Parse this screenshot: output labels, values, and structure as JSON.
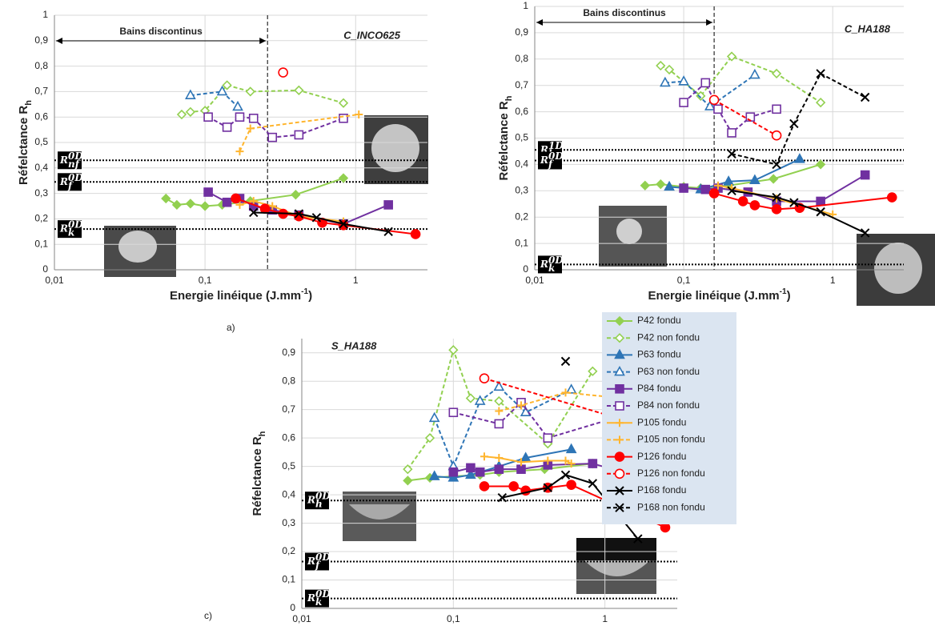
{
  "chart_data": [
    {
      "type": "line",
      "panel": "a)",
      "tag": "C_INCO625",
      "xscale": "log",
      "grid": true,
      "xlim": [
        0.01,
        3
      ],
      "xticks": [
        {
          "value": 0.01,
          "label": "0,01"
        },
        {
          "value": 0.1,
          "label": "0,1"
        },
        1
      ],
      "ylim": [
        0,
        1
      ],
      "yticks": [
        0,
        {
          "value": 0.1,
          "label": "0,1"
        },
        {
          "value": 0.2,
          "label": "0,2"
        },
        {
          "value": 0.3,
          "label": "0,3"
        },
        {
          "value": 0.4,
          "label": "0,4"
        },
        {
          "value": 0.5,
          "label": "0,5"
        },
        {
          "value": 0.6,
          "label": "0,6"
        },
        {
          "value": 0.7,
          "label": "0,7"
        },
        {
          "value": 0.8,
          "label": "0,8"
        },
        {
          "value": 0.9,
          "label": "0,9"
        },
        1
      ],
      "ylabel": "Réfelctance R",
      "ylabel_sub": "h",
      "xlabel": "Energie linéique (J.mm",
      "xlabel_sup": "-1",
      "xlabel_end": ")",
      "vline": {
        "value": 0.26,
        "label": "Bains discontinus"
      },
      "hlines": [
        {
          "value": 0.43,
          "symbol": "R",
          "sub": "nf",
          "sup": "0D"
        },
        {
          "value": 0.345,
          "symbol": "R",
          "sub": "f",
          "sup": "0D"
        },
        {
          "value": 0.16,
          "symbol": "R",
          "sub": "k",
          "sup": "0D"
        }
      ],
      "series": [
        {
          "color": "#92d050",
          "marker": "diamond",
          "filled": true,
          "dash": false,
          "x": [
            0.055,
            0.065,
            0.08,
            0.1,
            0.13,
            0.2,
            0.4,
            0.83
          ],
          "values": [
            0.28,
            0.255,
            0.26,
            0.25,
            0.255,
            0.27,
            0.295,
            0.36
          ]
        },
        {
          "color": "#92d050",
          "marker": "diamond",
          "filled": false,
          "dash": true,
          "x": [
            0.07,
            0.08,
            0.1,
            0.14,
            0.2,
            0.42,
            0.83
          ],
          "values": [
            0.61,
            0.62,
            0.625,
            0.725,
            0.7,
            0.705,
            0.655
          ]
        },
        {
          "color": "#2e75b6",
          "marker": "triangle",
          "filled": false,
          "dash": true,
          "x": [
            0.08,
            0.13,
            0.165
          ],
          "values": [
            0.685,
            0.7,
            0.64
          ]
        },
        {
          "color": "#7030a0",
          "marker": "square",
          "filled": true,
          "dash": false,
          "x": [
            0.105,
            0.14,
            0.17,
            0.21,
            0.28,
            0.42,
            0.83,
            1.65
          ],
          "values": [
            0.305,
            0.265,
            0.28,
            0.25,
            0.235,
            0.215,
            0.18,
            0.255
          ]
        },
        {
          "color": "#7030a0",
          "marker": "square",
          "filled": false,
          "dash": true,
          "x": [
            0.105,
            0.14,
            0.17,
            0.21,
            0.28,
            0.42,
            0.83
          ],
          "values": [
            0.6,
            0.56,
            0.6,
            0.595,
            0.52,
            0.53,
            0.595
          ]
        },
        {
          "color": "#ffb52e",
          "marker": "plus",
          "filled": true,
          "dash": false,
          "x": [
            0.17,
            0.21,
            0.28,
            0.42,
            0.83
          ],
          "values": [
            0.255,
            0.27,
            0.25,
            0.21,
            0.19
          ]
        },
        {
          "color": "#ffb52e",
          "marker": "plus",
          "filled": false,
          "dash": true,
          "x": [
            0.17,
            0.2,
            1.05
          ],
          "values": [
            0.465,
            0.555,
            0.61
          ]
        },
        {
          "color": "#ff0000",
          "marker": "circle",
          "filled": true,
          "dash": false,
          "x": [
            0.16,
            0.25,
            0.33,
            0.42,
            0.6,
            0.83,
            2.5
          ],
          "values": [
            0.28,
            0.24,
            0.22,
            0.21,
            0.185,
            0.175,
            0.14
          ]
        },
        {
          "color": "#ff0000",
          "marker": "circle",
          "filled": false,
          "dash": true,
          "x": [
            0.33
          ],
          "values": [
            0.775
          ]
        },
        {
          "color": "#000000",
          "marker": "x",
          "filled": true,
          "dash": false,
          "x": [
            0.21,
            0.42,
            0.55,
            0.83,
            1.65
          ],
          "values": [
            0.225,
            0.22,
            0.205,
            0.18,
            0.15
          ]
        }
      ]
    },
    {
      "type": "line",
      "panel": "b)",
      "tag": "C_HA188",
      "xscale": "log",
      "grid": true,
      "xlim": [
        0.01,
        3
      ],
      "xticks": [
        {
          "value": 0.01,
          "label": "0,01"
        },
        {
          "value": 0.1,
          "label": "0,1"
        },
        1
      ],
      "ylim": [
        0,
        1
      ],
      "yticks": [
        0,
        {
          "value": 0.1,
          "label": "0,1"
        },
        {
          "value": 0.2,
          "label": "0,2"
        },
        {
          "value": 0.3,
          "label": "0,3"
        },
        {
          "value": 0.4,
          "label": "0,4"
        },
        {
          "value": 0.5,
          "label": "0,5"
        },
        {
          "value": 0.6,
          "label": "0,6"
        },
        {
          "value": 0.7,
          "label": "0,7"
        },
        {
          "value": 0.8,
          "label": "0,8"
        },
        {
          "value": 0.9,
          "label": "0,9"
        },
        1
      ],
      "ylabel": "Réfelctance R",
      "ylabel_sub": "h",
      "xlabel": "Energie linéique (J.mm",
      "xlabel_sup": "-1",
      "xlabel_end": ")",
      "vline": {
        "value": 0.16,
        "label": "Bains discontinus"
      },
      "hlines": [
        {
          "value": 0.455,
          "symbol": "R",
          "sub": "h",
          "sup": "1D"
        },
        {
          "value": 0.415,
          "symbol": "R",
          "sub": "f",
          "sup": "0D"
        },
        {
          "value": 0.02,
          "symbol": "R",
          "sub": "k",
          "sup": "0D"
        }
      ],
      "series": [
        {
          "color": "#92d050",
          "marker": "diamond",
          "filled": true,
          "dash": false,
          "x": [
            0.055,
            0.07,
            0.1,
            0.13,
            0.2,
            0.4,
            0.83
          ],
          "values": [
            0.32,
            0.325,
            0.315,
            0.31,
            0.32,
            0.345,
            0.4
          ]
        },
        {
          "color": "#92d050",
          "marker": "diamond",
          "filled": false,
          "dash": true,
          "x": [
            0.07,
            0.08,
            0.13,
            0.21,
            0.42,
            0.83
          ],
          "values": [
            0.775,
            0.76,
            0.66,
            0.81,
            0.745,
            0.635
          ]
        },
        {
          "color": "#2e75b6",
          "marker": "triangle",
          "filled": true,
          "dash": false,
          "x": [
            0.08,
            0.13,
            0.2,
            0.3,
            0.6
          ],
          "values": [
            0.315,
            0.305,
            0.335,
            0.34,
            0.42
          ]
        },
        {
          "color": "#2e75b6",
          "marker": "triangle",
          "filled": false,
          "dash": true,
          "x": [
            0.075,
            0.1,
            0.15,
            0.3
          ],
          "values": [
            0.71,
            0.715,
            0.62,
            0.74
          ]
        },
        {
          "color": "#7030a0",
          "marker": "square",
          "filled": true,
          "dash": false,
          "x": [
            0.1,
            0.14,
            0.17,
            0.27,
            0.42,
            0.83,
            1.65
          ],
          "values": [
            0.31,
            0.305,
            0.31,
            0.295,
            0.26,
            0.26,
            0.36
          ]
        },
        {
          "color": "#7030a0",
          "marker": "square",
          "filled": false,
          "dash": true,
          "x": [
            0.1,
            0.14,
            0.17,
            0.21,
            0.28,
            0.42
          ],
          "values": [
            0.635,
            0.71,
            0.61,
            0.52,
            0.58,
            0.61
          ]
        },
        {
          "color": "#ffb52e",
          "marker": "plus",
          "filled": true,
          "dash": false,
          "x": [
            0.17,
            0.21,
            0.42,
            1.0
          ],
          "values": [
            0.32,
            0.31,
            0.27,
            0.21
          ]
        },
        {
          "color": "#ff0000",
          "marker": "circle",
          "filled": true,
          "dash": false,
          "x": [
            0.16,
            0.25,
            0.3,
            0.42,
            0.6,
            2.5
          ],
          "values": [
            0.29,
            0.26,
            0.245,
            0.23,
            0.235,
            0.275
          ]
        },
        {
          "color": "#ff0000",
          "marker": "circle",
          "filled": false,
          "dash": true,
          "x": [
            0.16,
            0.42
          ],
          "values": [
            0.645,
            0.51
          ]
        },
        {
          "color": "#000000",
          "marker": "x",
          "filled": true,
          "dash": false,
          "x": [
            0.21,
            0.42,
            0.55,
            0.83,
            1.65
          ],
          "values": [
            0.3,
            0.275,
            0.255,
            0.22,
            0.14
          ]
        },
        {
          "color": "#000000",
          "marker": "x",
          "filled": false,
          "dash": true,
          "x": [
            0.21,
            0.42,
            0.55,
            0.83,
            1.65
          ],
          "values": [
            0.44,
            0.4,
            0.555,
            0.745,
            0.655
          ]
        }
      ]
    },
    {
      "type": "line",
      "panel": "c)",
      "tag": "S_HA188",
      "xscale": "log",
      "grid": true,
      "legend": "right",
      "xlim": [
        0.01,
        3
      ],
      "xticks": [
        {
          "value": 0.01,
          "label": "0,01"
        },
        {
          "value": 0.1,
          "label": "0,1"
        },
        1
      ],
      "ylim": [
        0,
        0.95
      ],
      "yticks": [
        0,
        {
          "value": 0.1,
          "label": "0,1"
        },
        {
          "value": 0.2,
          "label": "0,2"
        },
        {
          "value": 0.3,
          "label": "0,3"
        },
        {
          "value": 0.4,
          "label": "0,4"
        },
        {
          "value": 0.5,
          "label": "0,5"
        },
        {
          "value": 0.6,
          "label": "0,6"
        },
        {
          "value": 0.7,
          "label": "0,7"
        },
        {
          "value": 0.8,
          "label": "0,8"
        },
        {
          "value": 0.9,
          "label": "0,9"
        }
      ],
      "ylabel": "Réfelctance R",
      "ylabel_sub": "h",
      "xlabel": "Energie linéique (J.mm",
      "xlabel_sup": "-1",
      "xlabel_end": ")",
      "hlines": [
        {
          "value": 0.38,
          "symbol": "R",
          "sub": "h",
          "sup": "0D"
        },
        {
          "value": 0.165,
          "symbol": "R",
          "sub": "f",
          "sup": "0D"
        },
        {
          "value": 0.035,
          "symbol": "R",
          "sub": "k",
          "sup": "0D"
        }
      ],
      "series": [
        {
          "name": "P42 fondu",
          "color": "#92d050",
          "marker": "diamond",
          "filled": true,
          "dash": false,
          "x": [
            0.05,
            0.07,
            0.1,
            0.15,
            0.2,
            0.4,
            0.83
          ],
          "values": [
            0.45,
            0.46,
            0.465,
            0.47,
            0.48,
            0.49,
            0.51
          ]
        },
        {
          "name": "P42 non fondu",
          "color": "#92d050",
          "marker": "diamond",
          "filled": false,
          "dash": true,
          "x": [
            0.05,
            0.07,
            0.1,
            0.13,
            0.2,
            0.42,
            0.83
          ],
          "values": [
            0.49,
            0.6,
            0.91,
            0.74,
            0.73,
            0.58,
            0.835
          ]
        },
        {
          "name": "P63 fondu",
          "color": "#2e75b6",
          "marker": "triangle",
          "filled": true,
          "dash": false,
          "x": [
            0.075,
            0.1,
            0.13,
            0.2,
            0.3,
            0.6
          ],
          "values": [
            0.465,
            0.46,
            0.47,
            0.5,
            0.53,
            0.56
          ]
        },
        {
          "name": "P63 non fondu",
          "color": "#2e75b6",
          "marker": "triangle",
          "filled": false,
          "dash": true,
          "x": [
            0.075,
            0.1,
            0.15,
            0.2,
            0.3,
            0.6
          ],
          "values": [
            0.67,
            0.5,
            0.73,
            0.78,
            0.69,
            0.77
          ]
        },
        {
          "name": "P84 fondu",
          "color": "#7030a0",
          "marker": "square",
          "filled": true,
          "dash": false,
          "x": [
            0.1,
            0.13,
            0.15,
            0.2,
            0.28,
            0.42,
            0.83,
            1.65
          ],
          "values": [
            0.48,
            0.495,
            0.48,
            0.49,
            0.49,
            0.505,
            0.51,
            0.465
          ]
        },
        {
          "name": "P84 non fondu",
          "color": "#7030a0",
          "marker": "square",
          "filled": false,
          "dash": true,
          "x": [
            0.1,
            0.2,
            0.28,
            0.42,
            1.65
          ],
          "values": [
            0.69,
            0.65,
            0.725,
            0.6,
            0.695
          ]
        },
        {
          "name": "P105 fondu",
          "color": "#ffb52e",
          "marker": "plus",
          "filled": true,
          "dash": false,
          "x": [
            0.16,
            0.2,
            0.28,
            0.42,
            0.55,
            0.6
          ],
          "values": [
            0.535,
            0.53,
            0.515,
            0.52,
            0.52,
            0.51
          ]
        },
        {
          "name": "P105 non fondu",
          "color": "#ffb52e",
          "marker": "plus",
          "filled": false,
          "dash": true,
          "x": [
            0.2,
            0.28,
            0.55,
            1.05
          ],
          "values": [
            0.695,
            0.715,
            0.76,
            0.745
          ]
        },
        {
          "name": "P126 fondu",
          "color": "#ff0000",
          "marker": "circle",
          "filled": true,
          "dash": false,
          "x": [
            0.16,
            0.25,
            0.3,
            0.42,
            0.6,
            2.5
          ],
          "values": [
            0.43,
            0.43,
            0.415,
            0.425,
            0.435,
            0.285
          ]
        },
        {
          "name": "P126 non fondu",
          "color": "#ff0000",
          "marker": "circle",
          "filled": false,
          "dash": true,
          "x": [
            0.16,
            2.5
          ],
          "values": [
            0.81,
            0.62
          ]
        },
        {
          "name": "P168 fondu",
          "color": "#000000",
          "marker": "x",
          "filled": true,
          "dash": false,
          "x": [
            0.21,
            0.42,
            0.55,
            0.83,
            1.65
          ],
          "values": [
            0.39,
            0.425,
            0.47,
            0.44,
            0.245
          ]
        },
        {
          "name": "P168 non fondu",
          "color": "#000000",
          "marker": "x",
          "filled": false,
          "dash": true,
          "x": [
            0.55
          ],
          "values": [
            0.87
          ]
        }
      ]
    }
  ]
}
